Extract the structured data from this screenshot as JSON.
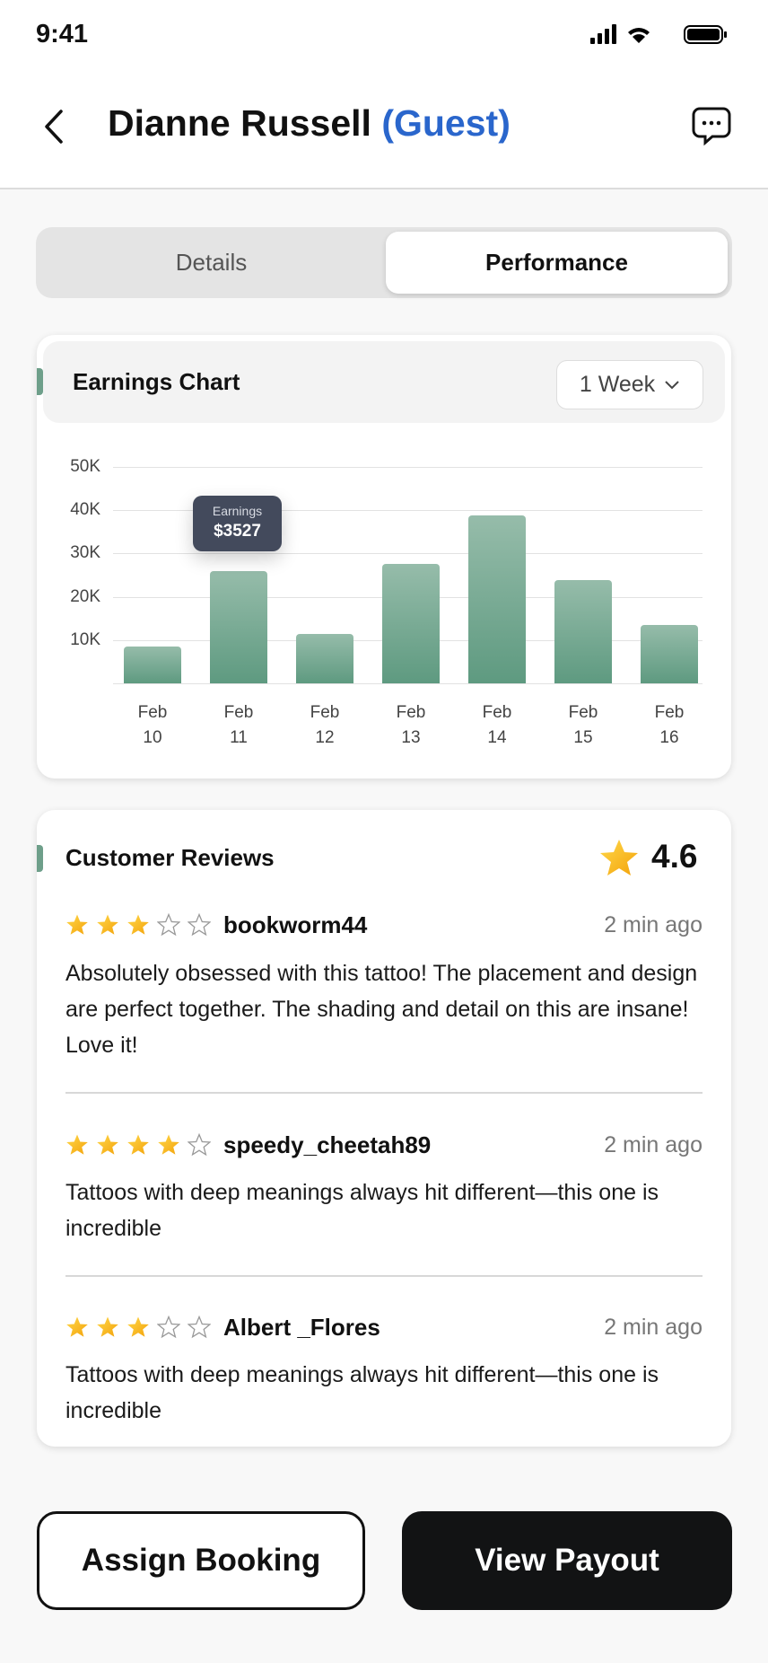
{
  "status_bar": {
    "time": "9:41"
  },
  "header": {
    "name": "Dianne Russell",
    "role": "(Guest)"
  },
  "tabs": [
    {
      "label": "Details",
      "active": false
    },
    {
      "label": "Performance",
      "active": true
    }
  ],
  "chart_card": {
    "title": "Earnings Chart",
    "range": "1 Week",
    "tooltip": {
      "label": "Earnings",
      "value": "$3527"
    }
  },
  "chart_data": {
    "type": "bar",
    "categories": [
      [
        "Feb",
        "10"
      ],
      [
        "Feb",
        "11"
      ],
      [
        "Feb",
        "12"
      ],
      [
        "Feb",
        "13"
      ],
      [
        "Feb",
        "14"
      ],
      [
        "Feb",
        "15"
      ],
      [
        "Feb",
        "16"
      ]
    ],
    "values": [
      8500,
      26000,
      11400,
      27500,
      38700,
      23800,
      13400
    ],
    "yticks": [
      "10K",
      "20K",
      "30K",
      "40K",
      "50K"
    ],
    "ylim": [
      0,
      50000
    ],
    "grid": true,
    "color": "#6e9f8a"
  },
  "reviews": {
    "title": "Customer Reviews",
    "rating": "4.6",
    "items": [
      {
        "user": "bookworm44",
        "stars": 3,
        "time": "2 min ago",
        "text": "Absolutely obsessed with this tattoo! The placement and design are perfect together. The shading and detail on this are insane! Love it!"
      },
      {
        "user": "speedy_cheetah89",
        "stars": 4,
        "time": "2 min ago",
        "text": "Tattoos with deep meanings always hit different—this one is incredible"
      },
      {
        "user": "Albert _Flores",
        "stars": 3,
        "time": "2 min ago",
        "text": "Tattoos with deep meanings always hit different—this one is incredible"
      }
    ]
  },
  "actions": {
    "assign": "Assign Booking",
    "payout": "View Payout"
  }
}
